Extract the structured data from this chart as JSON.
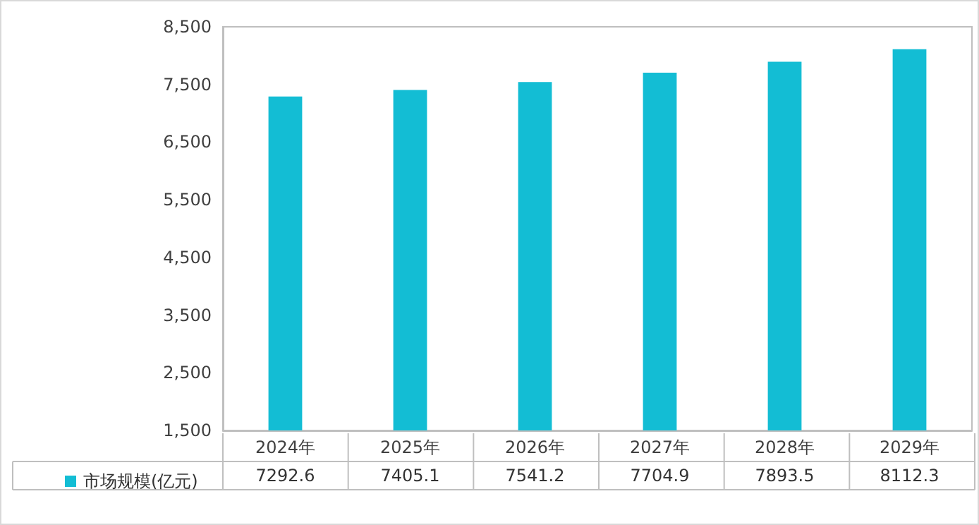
{
  "chart_data": {
    "type": "bar",
    "categories": [
      "2024年",
      "2025年",
      "2026年",
      "2027年",
      "2028年",
      "2029年"
    ],
    "series": [
      {
        "name": "市场规模(亿元)",
        "color": "#13bdd4",
        "values": [
          7292.6,
          7405.1,
          7541.2,
          7704.9,
          7893.5,
          8112.3
        ]
      }
    ],
    "ylim": [
      1500,
      8500
    ],
    "yticks": [
      {
        "value": 1500,
        "label": "1,500"
      },
      {
        "value": 2500,
        "label": "2,500"
      },
      {
        "value": 3500,
        "label": "3,500"
      },
      {
        "value": 4500,
        "label": "4,500"
      },
      {
        "value": 5500,
        "label": "5,500"
      },
      {
        "value": 6500,
        "label": "6,500"
      },
      {
        "value": 7500,
        "label": "7,500"
      },
      {
        "value": 8500,
        "label": "8,500"
      }
    ],
    "grid": false,
    "legend": "bottom left",
    "data_labels": true
  }
}
